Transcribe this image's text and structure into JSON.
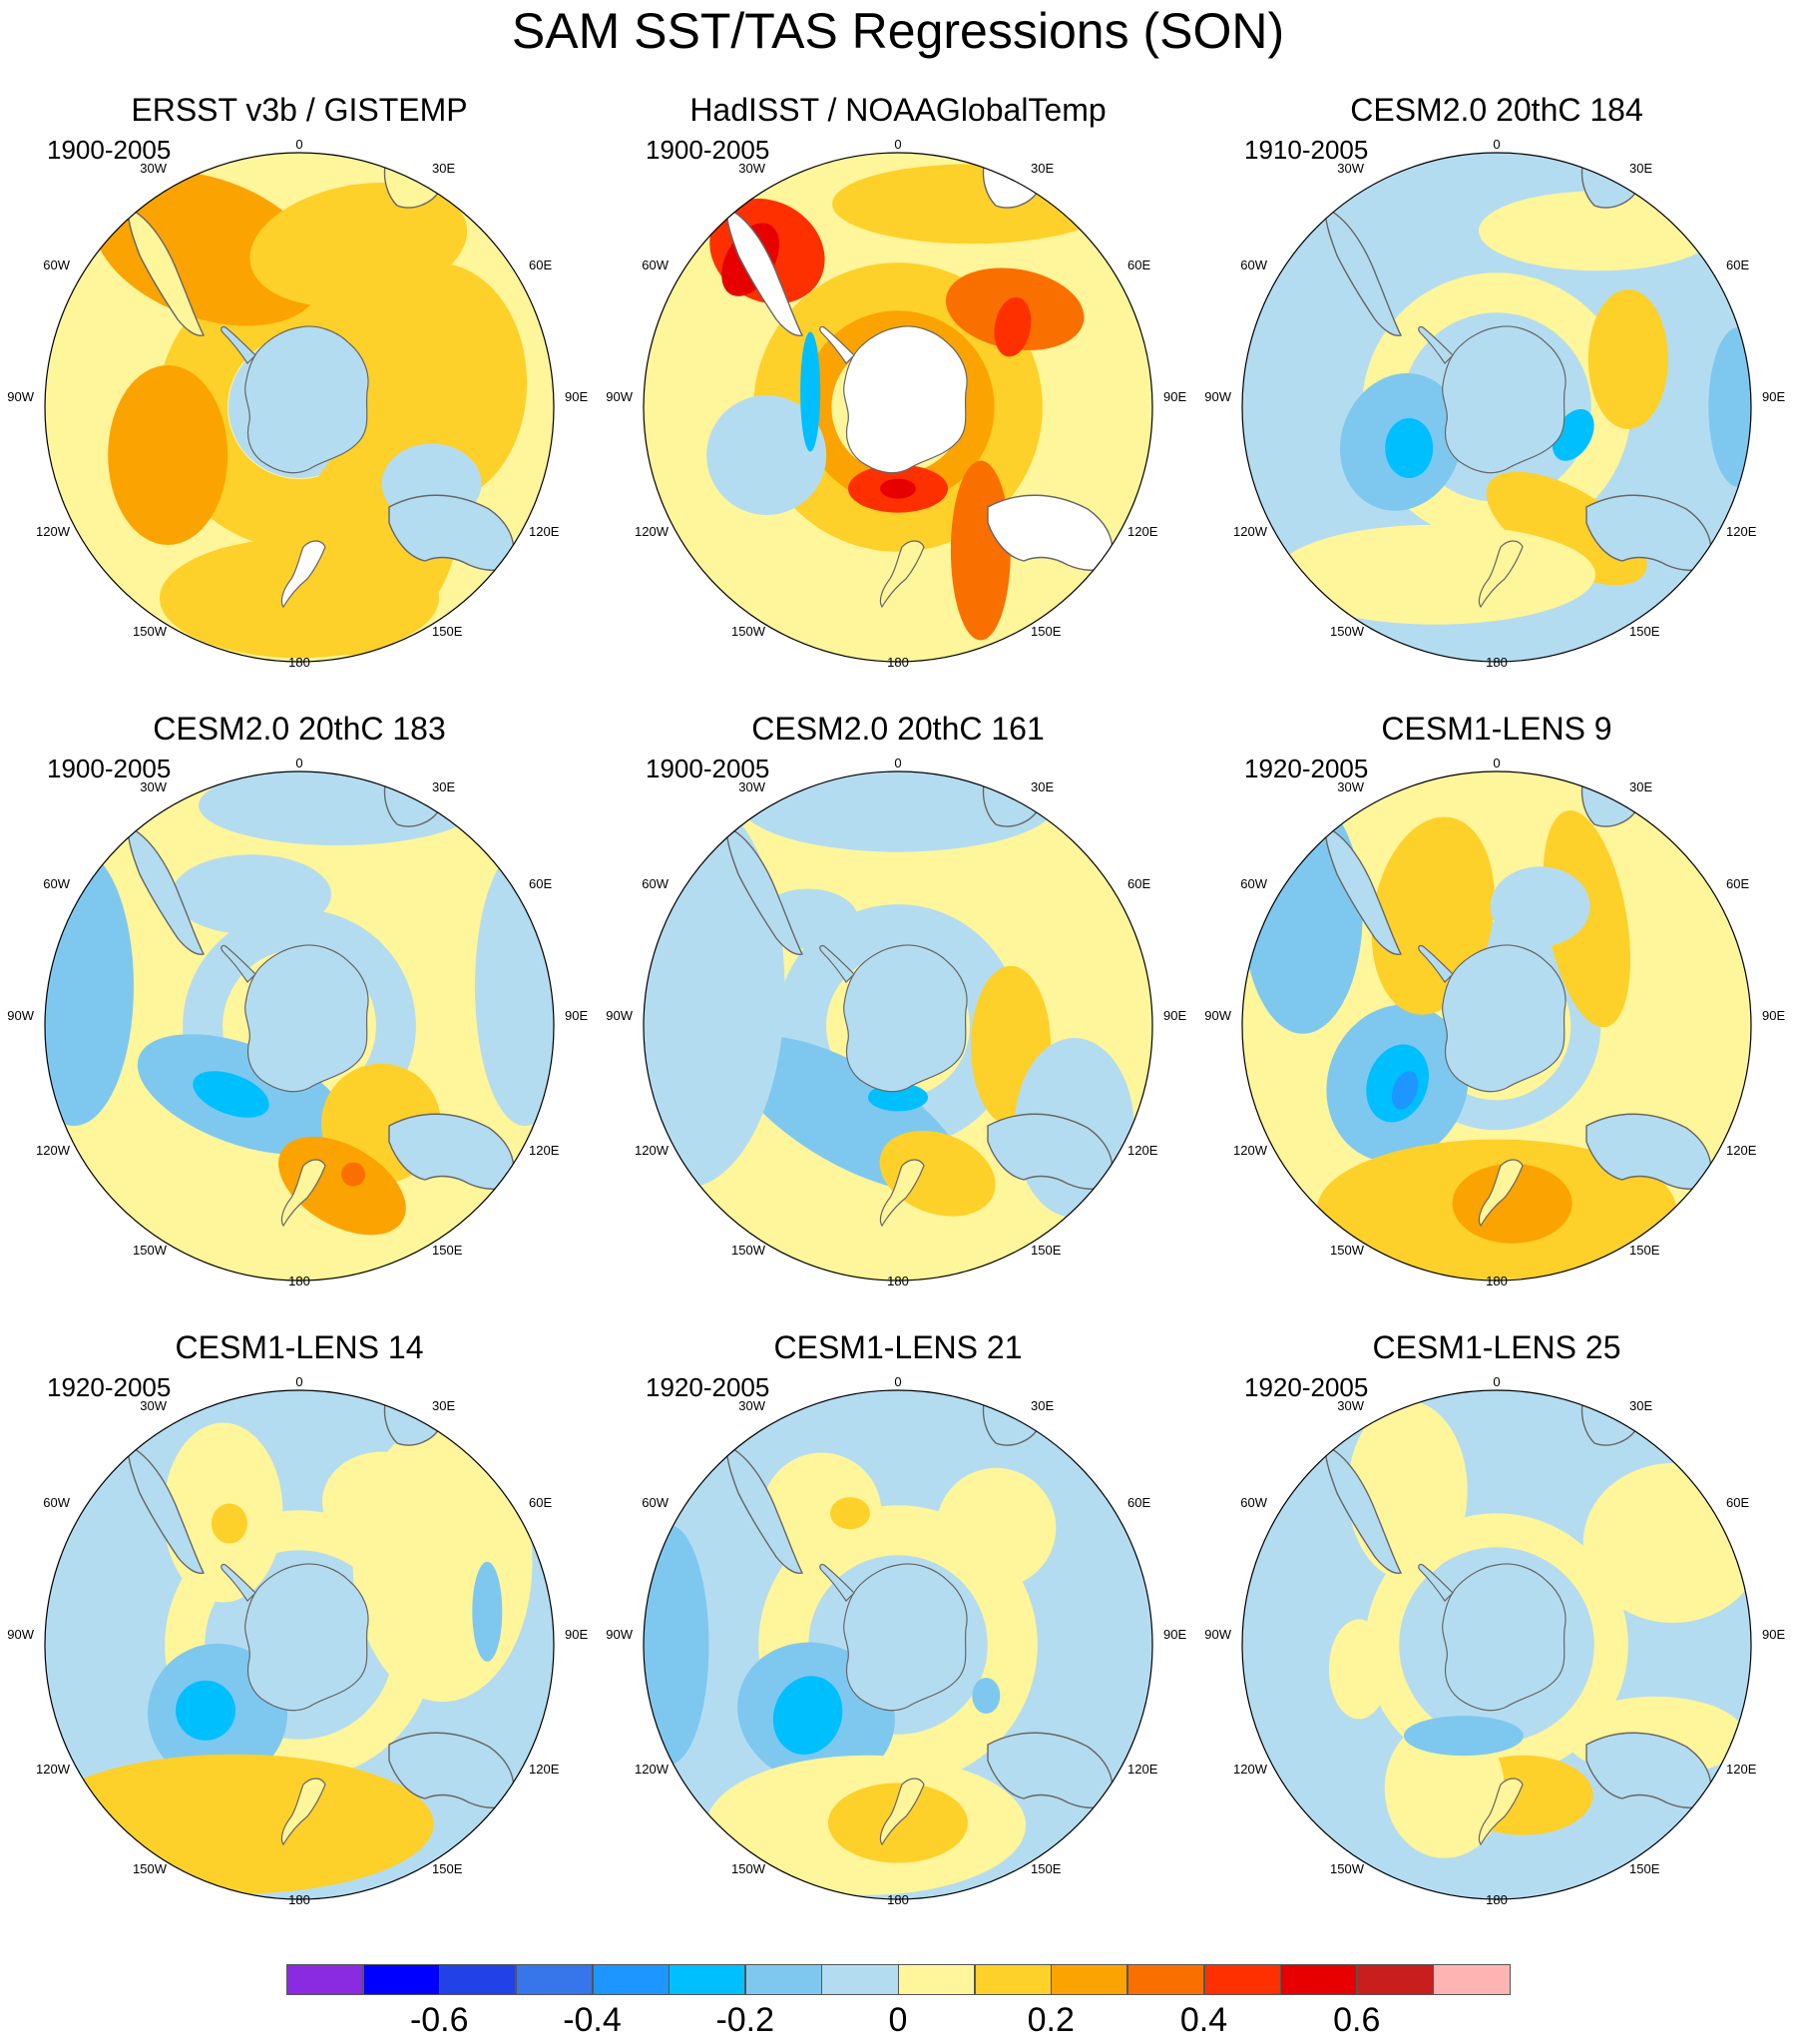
{
  "chart_data": {
    "type": "polar_map_grid",
    "title": "SAM SST/TAS Regressions (SON)",
    "projection": "south polar stereographic",
    "longitude_labels": [
      "0",
      "30E",
      "60E",
      "90E",
      "120E",
      "150E",
      "180",
      "150W",
      "120W",
      "90W",
      "60W",
      "30W"
    ],
    "panels": [
      {
        "title": "ERSST v3b / GISTEMP",
        "period": "1900-2005"
      },
      {
        "title": "HadISST / NOAAGlobalTemp",
        "period": "1900-2005"
      },
      {
        "title": "CESM2.0 20thC 184",
        "period": "1910-2005"
      },
      {
        "title": "CESM2.0 20thC 183",
        "period": "1900-2005"
      },
      {
        "title": "CESM2.0 20thC 161",
        "period": "1900-2005"
      },
      {
        "title": "CESM1-LENS 9",
        "period": "1920-2005"
      },
      {
        "title": "CESM1-LENS 14",
        "period": "1920-2005"
      },
      {
        "title": "CESM1-LENS 21",
        "period": "1920-2005"
      },
      {
        "title": "CESM1-LENS 25",
        "period": "1920-2005"
      }
    ],
    "colorbar": {
      "levels": [
        -0.7,
        -0.6,
        -0.5,
        -0.4,
        -0.3,
        -0.2,
        -0.1,
        0,
        0.1,
        0.2,
        0.3,
        0.4,
        0.5,
        0.6,
        0.7
      ],
      "colors": [
        "#8a2be2",
        "#0000ff",
        "#2242e8",
        "#3675ea",
        "#1e96ff",
        "#00bfff",
        "#7ec8f0",
        "#b4dcf0",
        "#fff59a",
        "#fdd02a",
        "#fba300",
        "#fa7000",
        "#ff3000",
        "#e60000",
        "#c81e1e",
        "#ffb4b4"
      ],
      "tick_labels": [
        "-0.6",
        "-0.4",
        "-0.2",
        "0",
        "0.2",
        "0.4",
        "0.6"
      ],
      "tick_values": [
        -0.6,
        -0.4,
        -0.2,
        0,
        0.2,
        0.4,
        0.6
      ]
    }
  }
}
